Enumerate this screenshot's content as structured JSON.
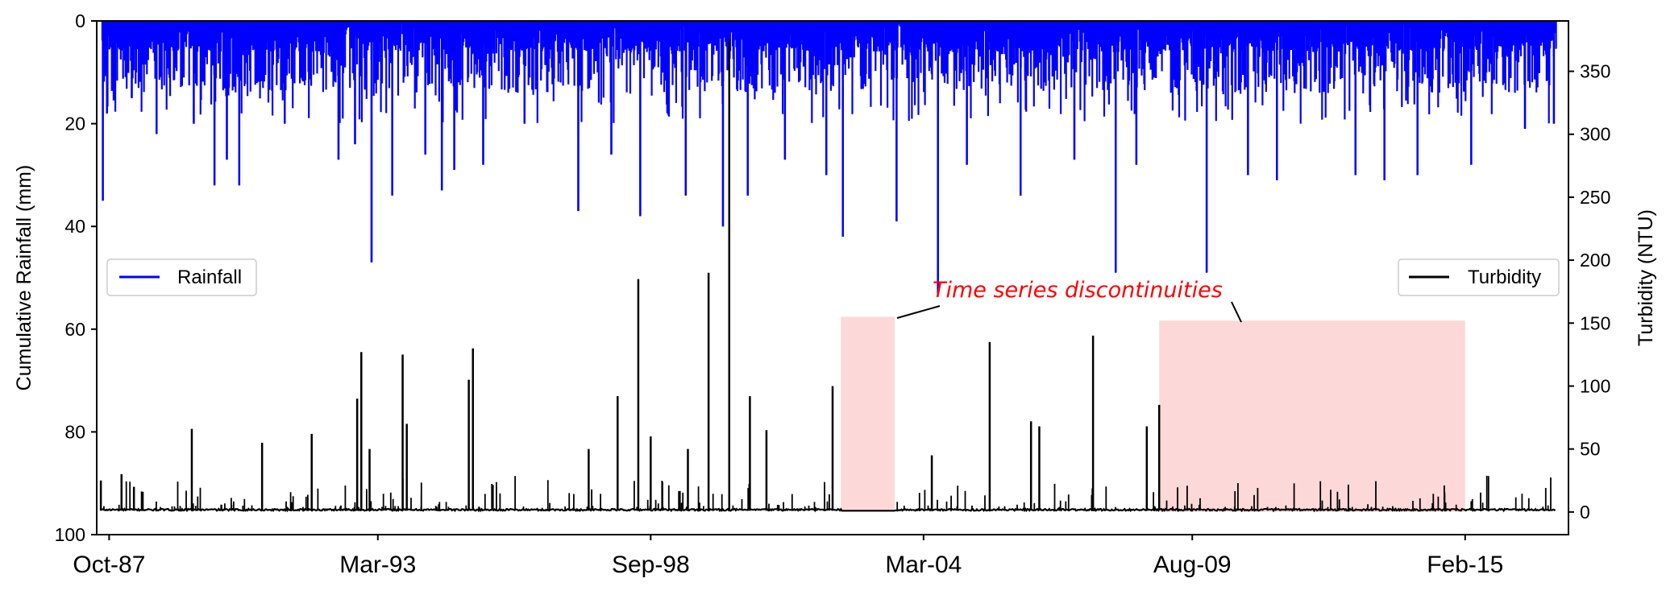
{
  "chart_data": {
    "type": "line",
    "x_axis": {
      "ticks": [
        "Oct-87",
        "Mar-93",
        "Sep-98",
        "Mar-04",
        "Aug-09",
        "Feb-15"
      ],
      "range": [
        "1987-07",
        "2017-03"
      ]
    },
    "y_left": {
      "label": "Cumulative Rainfall (mm)",
      "ticks": [
        0,
        20,
        40,
        60,
        80,
        100
      ],
      "inverted": true,
      "range": [
        0,
        100
      ]
    },
    "y_right": {
      "label": "Turbidity (NTU)",
      "ticks": [
        0,
        50,
        100,
        150,
        200,
        250,
        300,
        350
      ],
      "range": [
        -18,
        390
      ]
    },
    "series": [
      {
        "name": "Rainfall",
        "axis": "left",
        "color": "#0000ff",
        "spikes": [
          {
            "date": "1987-08",
            "value": 35
          },
          {
            "date": "1987-09",
            "value": 18
          },
          {
            "date": "1988-03",
            "value": 15
          },
          {
            "date": "1988-09",
            "value": 22
          },
          {
            "date": "1989-06",
            "value": 20
          },
          {
            "date": "1989-11",
            "value": 32
          },
          {
            "date": "1990-02",
            "value": 27
          },
          {
            "date": "1990-05",
            "value": 32
          },
          {
            "date": "1991-04",
            "value": 20
          },
          {
            "date": "1992-05",
            "value": 27
          },
          {
            "date": "1992-09",
            "value": 24
          },
          {
            "date": "1993-01",
            "value": 47
          },
          {
            "date": "1993-06",
            "value": 34
          },
          {
            "date": "1994-02",
            "value": 26
          },
          {
            "date": "1994-06",
            "value": 33
          },
          {
            "date": "1994-09",
            "value": 29
          },
          {
            "date": "1995-04",
            "value": 28
          },
          {
            "date": "1996-02",
            "value": 20
          },
          {
            "date": "1997-03",
            "value": 37
          },
          {
            "date": "1997-11",
            "value": 26
          },
          {
            "date": "1998-06",
            "value": 38
          },
          {
            "date": "1999-05",
            "value": 34
          },
          {
            "date": "2000-02",
            "value": 40
          },
          {
            "date": "2000-08",
            "value": 34
          },
          {
            "date": "2001-05",
            "value": 27
          },
          {
            "date": "2002-03",
            "value": 30
          },
          {
            "date": "2002-07",
            "value": 42
          },
          {
            "date": "2003-08",
            "value": 39
          },
          {
            "date": "2004-06",
            "value": 53
          },
          {
            "date": "2005-01",
            "value": 28
          },
          {
            "date": "2006-02",
            "value": 34
          },
          {
            "date": "2007-03",
            "value": 27
          },
          {
            "date": "2008-01",
            "value": 49
          },
          {
            "date": "2008-06",
            "value": 28
          },
          {
            "date": "2009-11",
            "value": 49
          },
          {
            "date": "2010-09",
            "value": 30
          },
          {
            "date": "2011-04",
            "value": 31
          },
          {
            "date": "2012-11",
            "value": 30
          },
          {
            "date": "2013-06",
            "value": 31
          },
          {
            "date": "2014-02",
            "value": 30
          },
          {
            "date": "2015-03",
            "value": 28
          },
          {
            "date": "2016-04",
            "value": 21
          },
          {
            "date": "2016-11",
            "value": 20
          }
        ]
      },
      {
        "name": "Turbidity",
        "axis": "right",
        "color": "#000000",
        "baseline": 1,
        "peaks": [
          {
            "date": "1987-08",
            "value": 25
          },
          {
            "date": "1988-01",
            "value": 30
          },
          {
            "date": "1988-04",
            "value": 20
          },
          {
            "date": "1989-06",
            "value": 66
          },
          {
            "date": "1990-11",
            "value": 55
          },
          {
            "date": "1991-11",
            "value": 62
          },
          {
            "date": "1992-10",
            "value": 90
          },
          {
            "date": "1992-11",
            "value": 127
          },
          {
            "date": "1993-01",
            "value": 50
          },
          {
            "date": "1993-09",
            "value": 125
          },
          {
            "date": "1993-10",
            "value": 70
          },
          {
            "date": "1995-01",
            "value": 105
          },
          {
            "date": "1995-02",
            "value": 130
          },
          {
            "date": "1997-06",
            "value": 50
          },
          {
            "date": "1998-01",
            "value": 92
          },
          {
            "date": "1998-06",
            "value": 185
          },
          {
            "date": "1998-09",
            "value": 60
          },
          {
            "date": "1999-06",
            "value": 50
          },
          {
            "date": "1999-11",
            "value": 190
          },
          {
            "date": "2000-04",
            "value": 375
          },
          {
            "date": "2000-09",
            "value": 92
          },
          {
            "date": "2001-01",
            "value": 65
          },
          {
            "date": "2002-05",
            "value": 100
          },
          {
            "date": "2004-05",
            "value": 45
          },
          {
            "date": "2005-07",
            "value": 135
          },
          {
            "date": "2006-05",
            "value": 72
          },
          {
            "date": "2006-07",
            "value": 68
          },
          {
            "date": "2007-08",
            "value": 140
          },
          {
            "date": "2008-09",
            "value": 68
          },
          {
            "date": "2008-12",
            "value": 85
          }
        ]
      }
    ],
    "shaded_regions": [
      {
        "start": "2002-07",
        "end": "2003-08",
        "color": "#fdd8d8"
      },
      {
        "start": "2008-12",
        "end": "2015-02",
        "color": "#fdd8d8"
      }
    ],
    "annotation": {
      "text": "Time series discontinuities",
      "color": "#ff0000"
    },
    "legends": [
      {
        "label": "Rainfall",
        "color": "#0000ff",
        "position": "middle-left"
      },
      {
        "label": "Turbidity",
        "color": "#000000",
        "position": "middle-right"
      }
    ],
    "grid": false
  }
}
